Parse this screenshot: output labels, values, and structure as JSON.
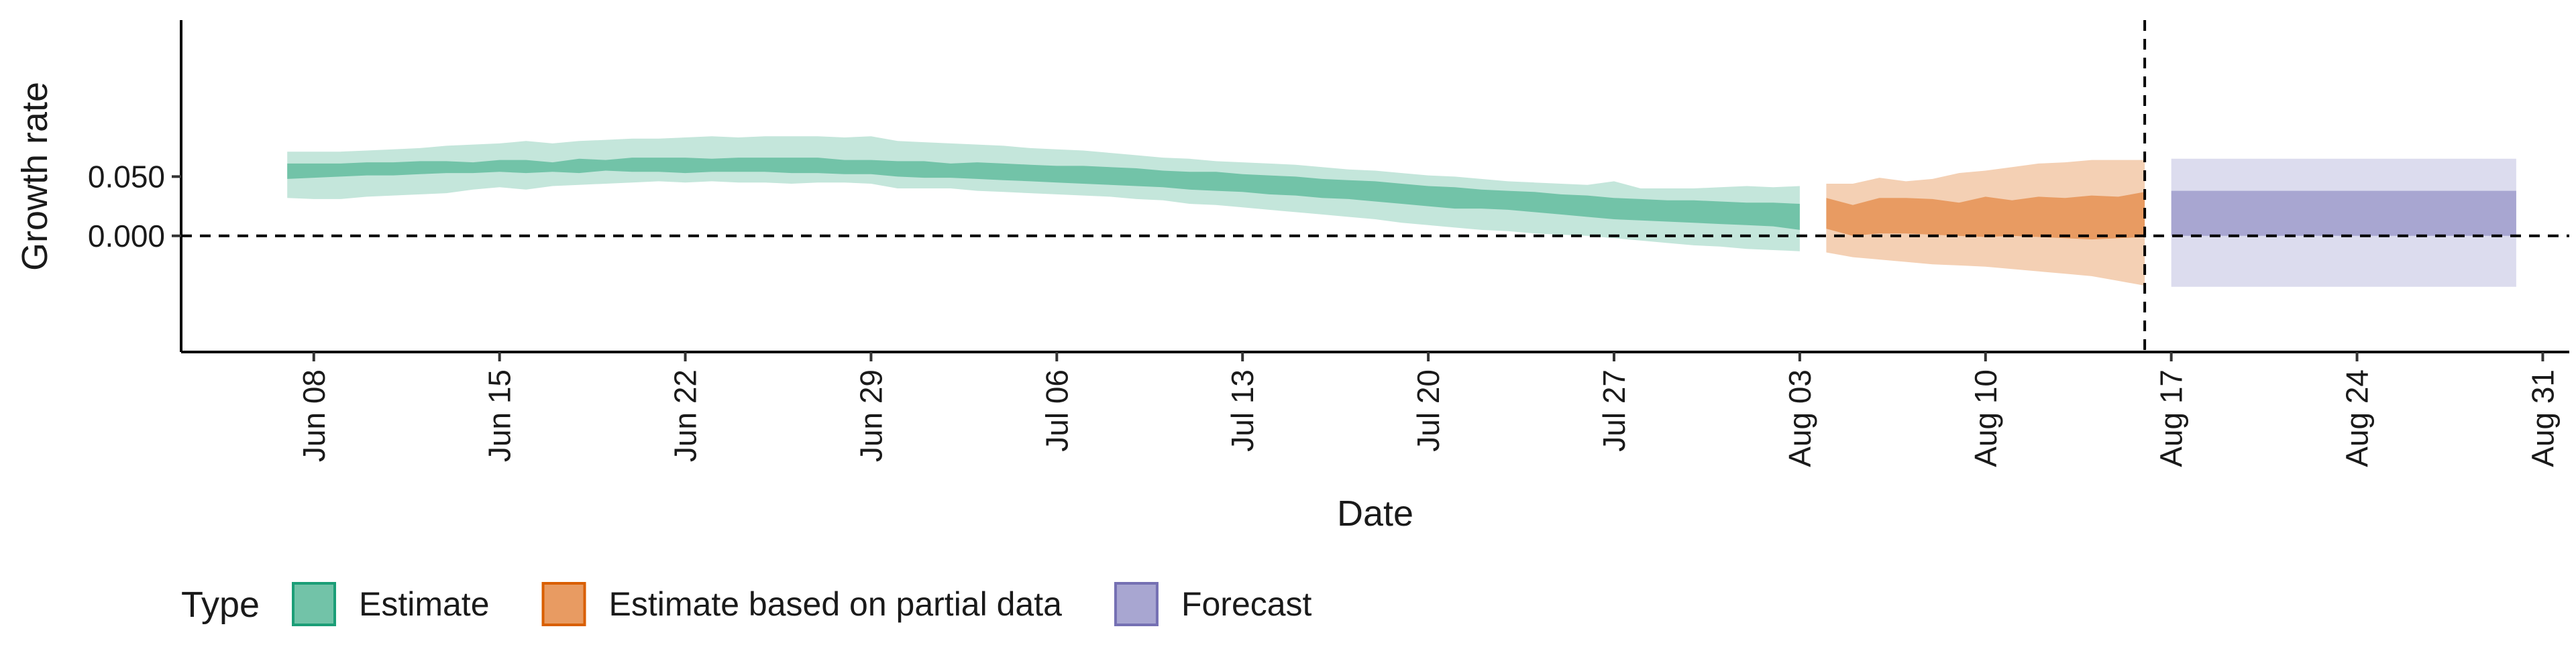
{
  "chart_data": {
    "type": "area",
    "title": "",
    "xlabel": "Date",
    "ylabel": "Growth rate",
    "ylim": [
      -0.098,
      0.182
    ],
    "xlim": [
      "2020-06-03",
      "2020-09-01"
    ],
    "grid": false,
    "legend": {
      "title": "Type",
      "placement": "bottom-left",
      "items": [
        {
          "label": "Estimate",
          "color": "#72c3a8",
          "border": "#1b9e77"
        },
        {
          "label": "Estimate based on partial data",
          "color": "#e89b62",
          "border": "#d95f02"
        },
        {
          "label": "Forecast",
          "color": "#a8a6d1",
          "border": "#7570b3"
        }
      ]
    },
    "x_ticks": [
      {
        "date": "2020-06-08",
        "label": "Jun 08"
      },
      {
        "date": "2020-06-15",
        "label": "Jun 15"
      },
      {
        "date": "2020-06-22",
        "label": "Jun 22"
      },
      {
        "date": "2020-06-29",
        "label": "Jun 29"
      },
      {
        "date": "2020-07-06",
        "label": "Jul 06"
      },
      {
        "date": "2020-07-13",
        "label": "Jul 13"
      },
      {
        "date": "2020-07-20",
        "label": "Jul 20"
      },
      {
        "date": "2020-07-27",
        "label": "Jul 27"
      },
      {
        "date": "2020-08-03",
        "label": "Aug 03"
      },
      {
        "date": "2020-08-10",
        "label": "Aug 10"
      },
      {
        "date": "2020-08-17",
        "label": "Aug 17"
      },
      {
        "date": "2020-08-24",
        "label": "Aug 24"
      },
      {
        "date": "2020-08-31",
        "label": "Aug 31"
      }
    ],
    "y_ticks": [
      {
        "value": 0.05,
        "label": "0.050"
      },
      {
        "value": 0.0,
        "label": "0.000"
      }
    ],
    "reference_lines": {
      "horizontal_y": 0.0,
      "vertical_date": "2020-08-16"
    },
    "series": [
      {
        "name": "Estimate",
        "color_inner": "#72c3a8",
        "color_outer": "#c4e6db",
        "x": [
          "2020-06-07",
          "2020-06-08",
          "2020-06-09",
          "2020-06-10",
          "2020-06-11",
          "2020-06-12",
          "2020-06-13",
          "2020-06-14",
          "2020-06-15",
          "2020-06-16",
          "2020-06-17",
          "2020-06-18",
          "2020-06-19",
          "2020-06-20",
          "2020-06-21",
          "2020-06-22",
          "2020-06-23",
          "2020-06-24",
          "2020-06-25",
          "2020-06-26",
          "2020-06-27",
          "2020-06-28",
          "2020-06-29",
          "2020-06-30",
          "2020-07-01",
          "2020-07-02",
          "2020-07-03",
          "2020-07-04",
          "2020-07-05",
          "2020-07-06",
          "2020-07-07",
          "2020-07-08",
          "2020-07-09",
          "2020-07-10",
          "2020-07-11",
          "2020-07-12",
          "2020-07-13",
          "2020-07-14",
          "2020-07-15",
          "2020-07-16",
          "2020-07-17",
          "2020-07-18",
          "2020-07-19",
          "2020-07-20",
          "2020-07-21",
          "2020-07-22",
          "2020-07-23",
          "2020-07-24",
          "2020-07-25",
          "2020-07-26",
          "2020-07-27",
          "2020-07-28",
          "2020-07-29",
          "2020-07-30",
          "2020-07-31",
          "2020-08-01",
          "2020-08-02",
          "2020-08-03"
        ],
        "lower_90": [
          0.032,
          0.031,
          0.031,
          0.033,
          0.034,
          0.035,
          0.036,
          0.039,
          0.041,
          0.039,
          0.042,
          0.043,
          0.044,
          0.045,
          0.046,
          0.045,
          0.046,
          0.045,
          0.045,
          0.044,
          0.045,
          0.045,
          0.044,
          0.04,
          0.04,
          0.04,
          0.038,
          0.037,
          0.036,
          0.035,
          0.034,
          0.033,
          0.031,
          0.03,
          0.027,
          0.026,
          0.024,
          0.022,
          0.02,
          0.018,
          0.016,
          0.014,
          0.011,
          0.009,
          0.007,
          0.005,
          0.004,
          0.002,
          0.001,
          0.0,
          -0.002,
          -0.004,
          -0.006,
          -0.008,
          -0.009,
          -0.011,
          -0.012,
          -0.013
        ],
        "lower_50": [
          0.048,
          0.049,
          0.05,
          0.051,
          0.051,
          0.052,
          0.053,
          0.053,
          0.054,
          0.053,
          0.054,
          0.053,
          0.055,
          0.054,
          0.054,
          0.053,
          0.054,
          0.054,
          0.054,
          0.053,
          0.053,
          0.052,
          0.052,
          0.05,
          0.049,
          0.049,
          0.048,
          0.047,
          0.046,
          0.045,
          0.044,
          0.043,
          0.042,
          0.041,
          0.039,
          0.038,
          0.037,
          0.035,
          0.034,
          0.032,
          0.031,
          0.029,
          0.027,
          0.025,
          0.023,
          0.023,
          0.022,
          0.02,
          0.018,
          0.016,
          0.014,
          0.013,
          0.012,
          0.011,
          0.01,
          0.009,
          0.008,
          0.005
        ],
        "upper_50": [
          0.061,
          0.061,
          0.061,
          0.062,
          0.062,
          0.063,
          0.063,
          0.062,
          0.064,
          0.064,
          0.062,
          0.065,
          0.064,
          0.066,
          0.066,
          0.066,
          0.065,
          0.066,
          0.066,
          0.066,
          0.066,
          0.064,
          0.064,
          0.063,
          0.063,
          0.061,
          0.062,
          0.061,
          0.06,
          0.059,
          0.059,
          0.058,
          0.057,
          0.055,
          0.054,
          0.054,
          0.052,
          0.051,
          0.05,
          0.048,
          0.047,
          0.046,
          0.044,
          0.042,
          0.041,
          0.039,
          0.038,
          0.037,
          0.035,
          0.034,
          0.032,
          0.031,
          0.03,
          0.03,
          0.029,
          0.028,
          0.028,
          0.027
        ],
        "upper_90": [
          0.071,
          0.071,
          0.071,
          0.072,
          0.073,
          0.074,
          0.076,
          0.077,
          0.078,
          0.08,
          0.078,
          0.08,
          0.081,
          0.082,
          0.082,
          0.083,
          0.084,
          0.083,
          0.084,
          0.084,
          0.084,
          0.083,
          0.084,
          0.08,
          0.079,
          0.078,
          0.077,
          0.076,
          0.074,
          0.073,
          0.072,
          0.07,
          0.068,
          0.066,
          0.065,
          0.063,
          0.062,
          0.061,
          0.06,
          0.058,
          0.056,
          0.055,
          0.053,
          0.051,
          0.05,
          0.048,
          0.046,
          0.045,
          0.044,
          0.043,
          0.046,
          0.04,
          0.04,
          0.04,
          0.041,
          0.042,
          0.041,
          0.042
        ]
      },
      {
        "name": "Estimate based on partial data",
        "color_inner": "#e89b62",
        "color_outer": "#f4d0b4",
        "x": [
          "2020-08-04",
          "2020-08-05",
          "2020-08-06",
          "2020-08-07",
          "2020-08-08",
          "2020-08-09",
          "2020-08-10",
          "2020-08-11",
          "2020-08-12",
          "2020-08-13",
          "2020-08-14",
          "2020-08-15",
          "2020-08-16"
        ],
        "lower_90": [
          -0.014,
          -0.018,
          -0.02,
          -0.022,
          -0.024,
          -0.025,
          -0.026,
          -0.028,
          -0.03,
          -0.032,
          -0.034,
          -0.038,
          -0.042
        ],
        "lower_50": [
          0.006,
          0.0,
          0.002,
          0.002,
          0.001,
          0.0,
          -0.001,
          0.0,
          -0.001,
          -0.002,
          -0.003,
          -0.002,
          -0.001
        ],
        "upper_50": [
          0.032,
          0.026,
          0.032,
          0.032,
          0.031,
          0.028,
          0.033,
          0.03,
          0.033,
          0.032,
          0.034,
          0.033,
          0.037
        ],
        "upper_90": [
          0.044,
          0.044,
          0.049,
          0.046,
          0.048,
          0.053,
          0.055,
          0.058,
          0.061,
          0.062,
          0.064,
          0.064,
          0.064
        ]
      },
      {
        "name": "Forecast",
        "color_inner": "#a8a6d1",
        "color_outer": "#dcdcee",
        "x": [
          "2020-08-17",
          "2020-08-30"
        ],
        "lower_90": [
          -0.043,
          -0.043
        ],
        "lower_50": [
          0.0,
          0.0
        ],
        "upper_50": [
          0.038,
          0.038
        ],
        "upper_90": [
          0.065,
          0.065
        ]
      }
    ]
  }
}
